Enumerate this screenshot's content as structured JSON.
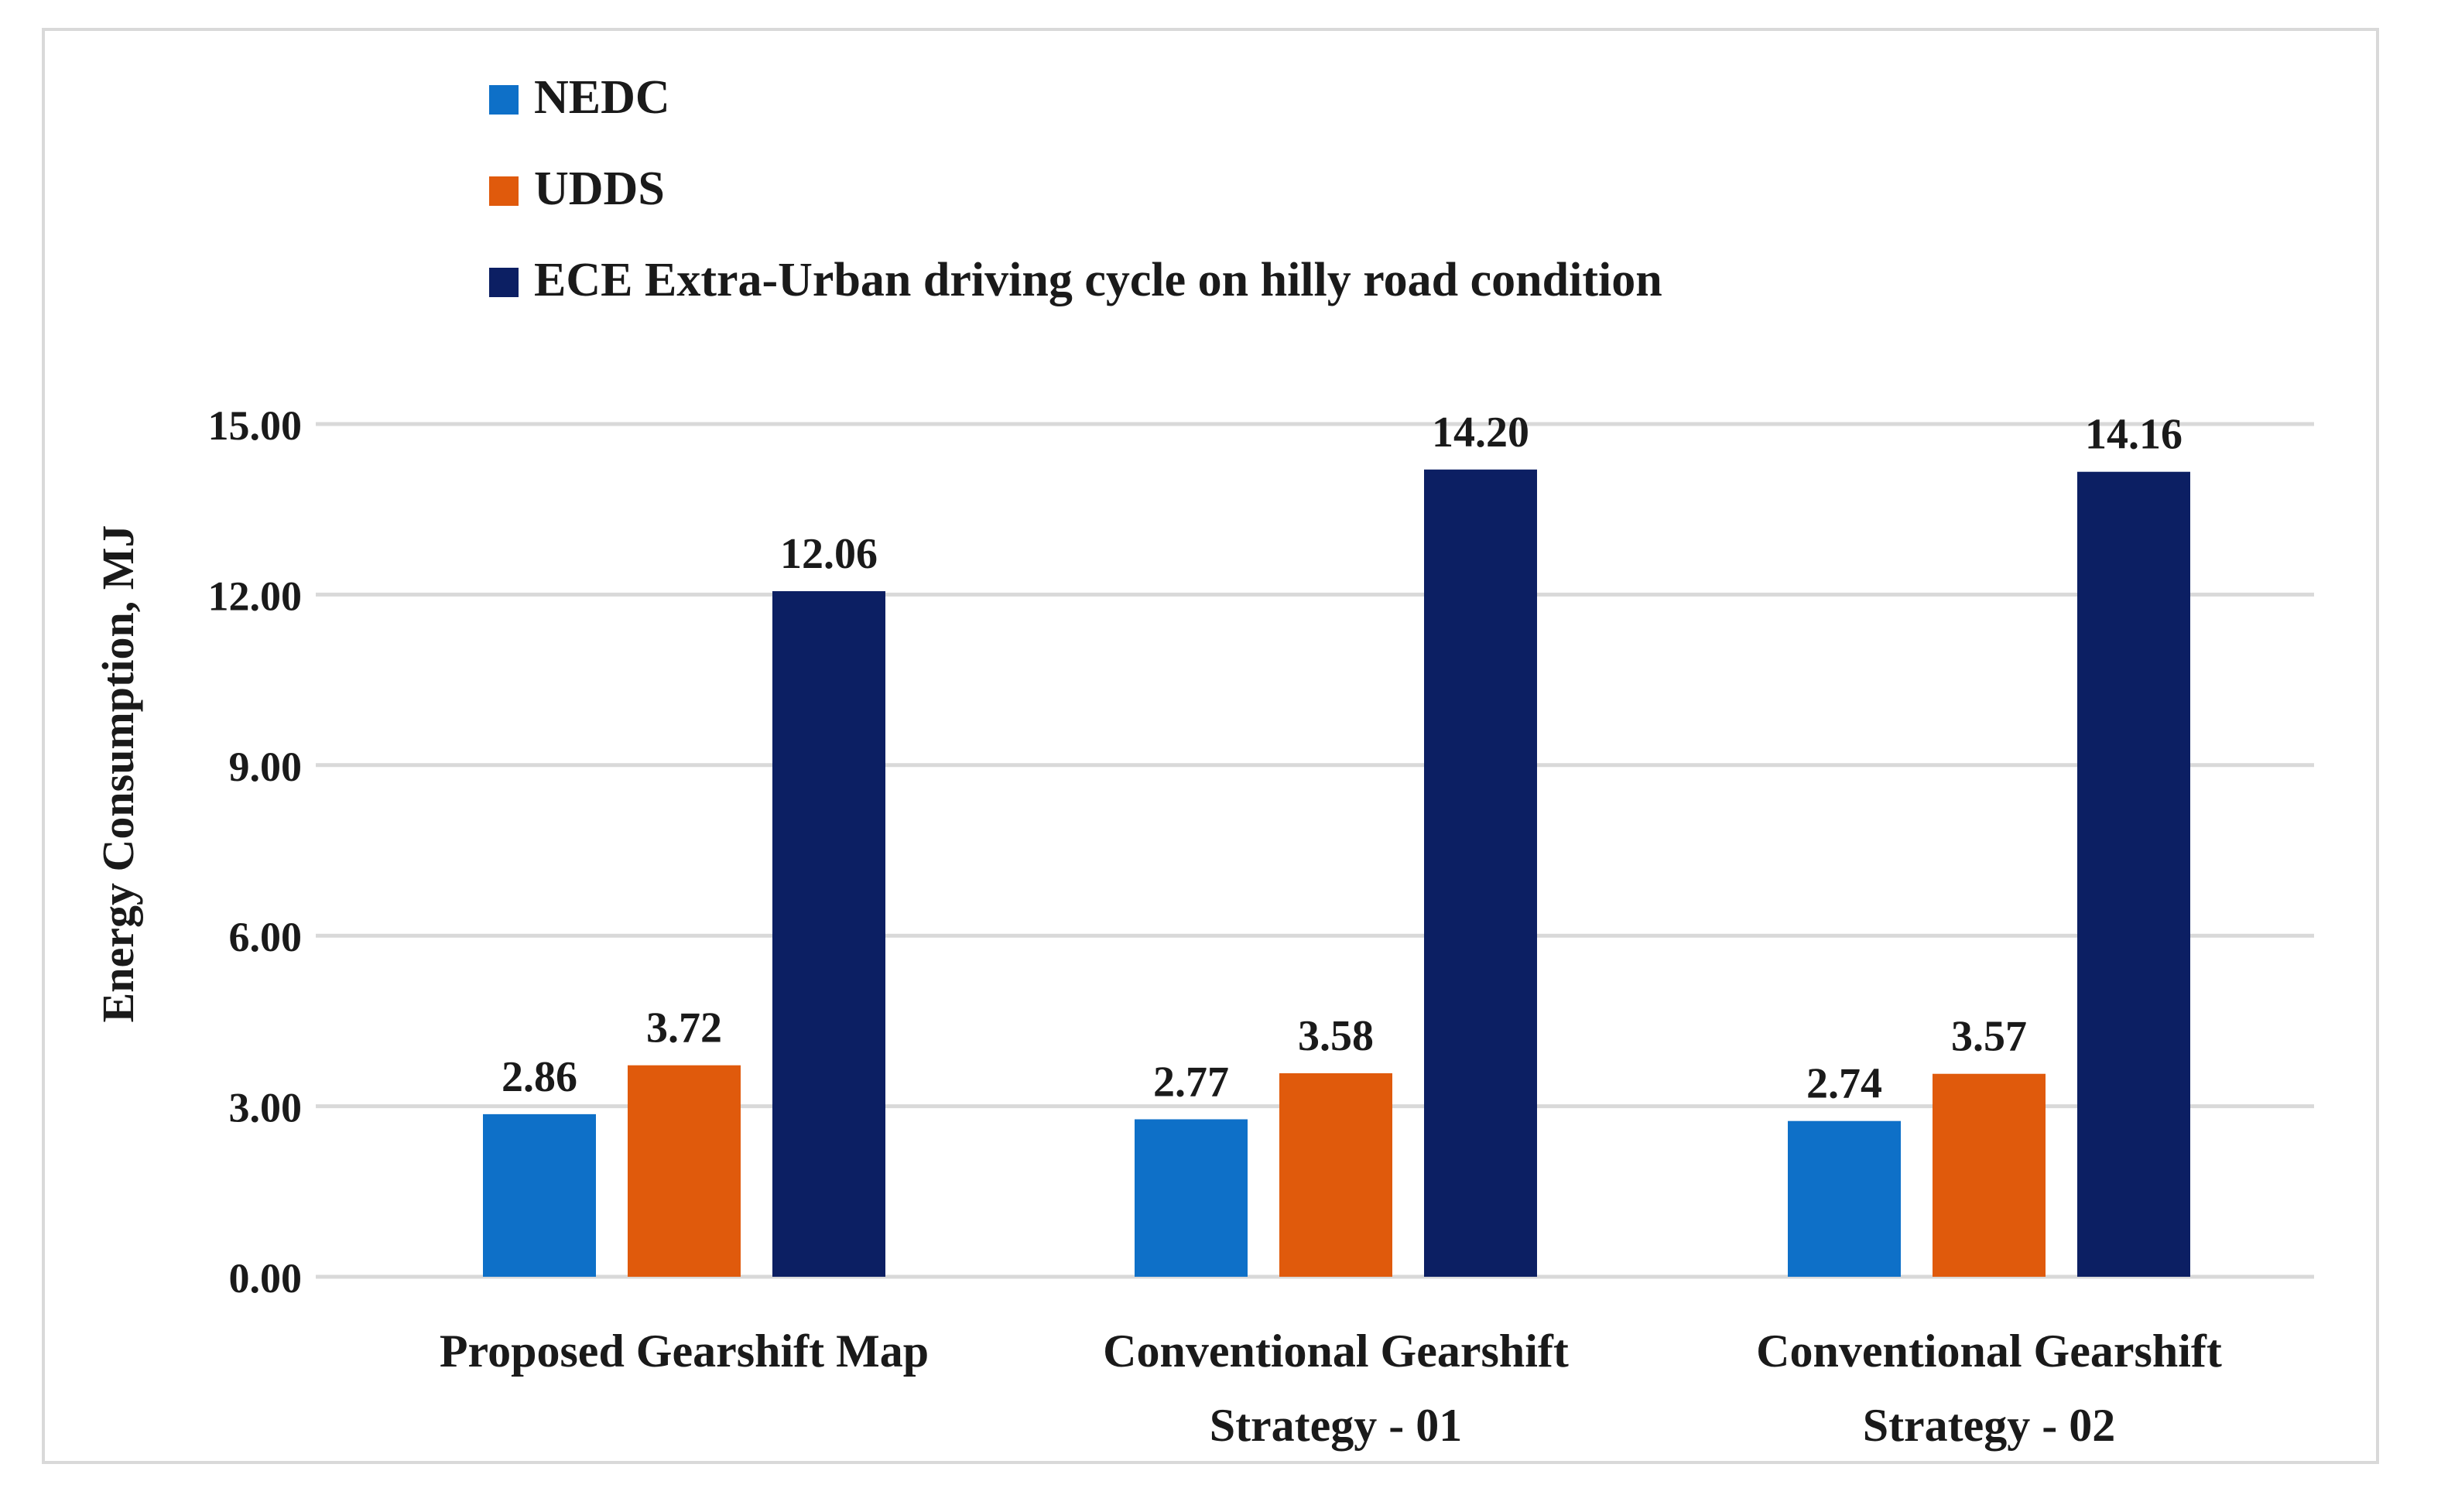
{
  "chart_data": {
    "type": "bar",
    "title": "",
    "xlabel": "",
    "ylabel": "Energy Consumption, MJ",
    "ylim": [
      0,
      15
    ],
    "yticks": [
      "0.00",
      "3.00",
      "6.00",
      "9.00",
      "12.00",
      "15.00"
    ],
    "grid": true,
    "legend_position": "top-left",
    "categories": [
      [
        "Proposed Gearshift Map"
      ],
      [
        "Conventional Gearshift",
        "Strategy - 01"
      ],
      [
        "Conventional Gearshift",
        "Strategy - 02"
      ]
    ],
    "series": [
      {
        "name": "NEDC",
        "color": "#0e70c8",
        "values": [
          2.86,
          2.77,
          2.74
        ],
        "labels": [
          "2.86",
          "2.77",
          "2.74"
        ]
      },
      {
        "name": "UDDS",
        "color": "#e05a0c",
        "values": [
          3.72,
          3.58,
          3.57
        ],
        "labels": [
          "3.72",
          "3.58",
          "3.57"
        ]
      },
      {
        "name": "ECE Extra-Urban driving cycle on hilly road condition",
        "color": "#0c1f63",
        "values": [
          12.06,
          14.2,
          14.16
        ],
        "labels": [
          "12.06",
          "14.20",
          "14.16"
        ]
      }
    ]
  }
}
